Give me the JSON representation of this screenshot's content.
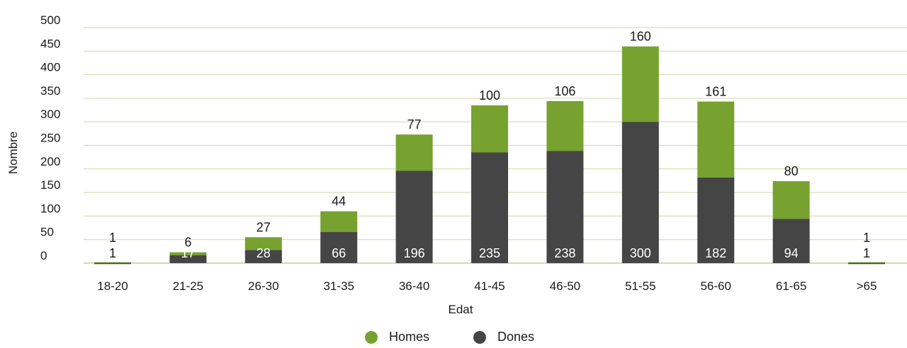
{
  "chart_data": {
    "type": "bar",
    "stacked": true,
    "xlabel": "Edat",
    "ylabel": "Nombre",
    "ylim": [
      0,
      500
    ],
    "yticks": [
      0,
      50,
      100,
      150,
      200,
      250,
      300,
      350,
      400,
      450,
      500
    ],
    "grid": true,
    "legend_position": "bottom-center",
    "categories": [
      "18-20",
      "21-25",
      "26-30",
      "31-35",
      "36-40",
      "41-45",
      "46-50",
      "51-55",
      "56-60",
      "61-65",
      ">65"
    ],
    "series": [
      {
        "name": "Dones",
        "color": "#454545",
        "values": [
          1,
          17,
          28,
          66,
          196,
          235,
          238,
          300,
          182,
          94,
          1
        ]
      },
      {
        "name": "Homes",
        "color": "#77a22f",
        "values": [
          1,
          6,
          27,
          44,
          77,
          100,
          106,
          160,
          161,
          80,
          1
        ]
      }
    ],
    "legend": [
      {
        "name": "Homes",
        "color": "#77a22f"
      },
      {
        "name": "Dones",
        "color": "#454545"
      }
    ]
  }
}
